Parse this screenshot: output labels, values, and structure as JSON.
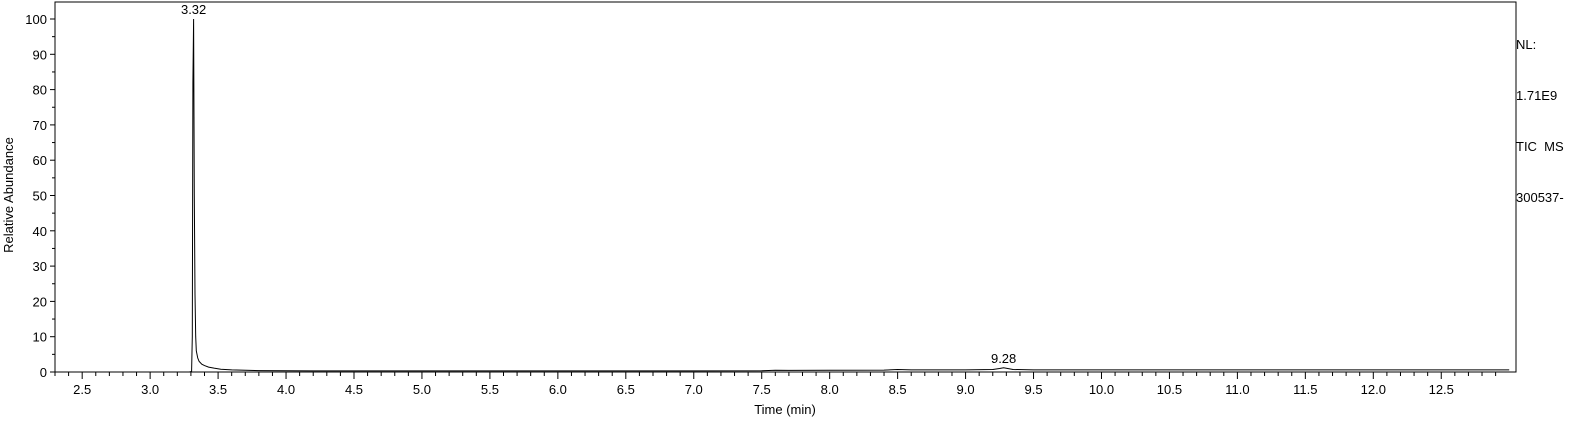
{
  "chart_data": {
    "type": "line",
    "xlabel": "Time (min)",
    "ylabel": "Relative Abundance",
    "xlim": [
      2.3,
      13.05
    ],
    "ylim": [
      0,
      100
    ],
    "x_ticks": [
      2.5,
      3.0,
      3.5,
      4.0,
      4.5,
      5.0,
      5.5,
      6.0,
      6.5,
      7.0,
      7.5,
      8.0,
      8.5,
      9.0,
      9.5,
      10.0,
      10.5,
      11.0,
      11.5,
      12.0,
      12.5
    ],
    "x_tick_labels": [
      "2.5",
      "3.0",
      "3.5",
      "4.0",
      "4.5",
      "5.0",
      "5.5",
      "6.0",
      "6.5",
      "7.0",
      "7.5",
      "8.0",
      "8.5",
      "9.0",
      "9.5",
      "10.0",
      "10.5",
      "11.0",
      "11.5",
      "12.0",
      "12.5"
    ],
    "y_ticks": [
      0,
      10,
      20,
      30,
      40,
      50,
      60,
      70,
      80,
      90,
      100
    ],
    "y_tick_labels": [
      "0",
      "10",
      "20",
      "30",
      "40",
      "50",
      "60",
      "70",
      "80",
      "90",
      "100"
    ],
    "series": [
      {
        "x": [
          3.29,
          3.305,
          3.31,
          3.315,
          3.32,
          3.325,
          3.33,
          3.335,
          3.34,
          3.35,
          3.36,
          3.38,
          3.4,
          3.43,
          3.47,
          3.52,
          3.6,
          3.8,
          4.2,
          5.0,
          6.0,
          7.0,
          7.5,
          7.6,
          7.7,
          8.0,
          8.4,
          8.5,
          8.6,
          9.0,
          9.2,
          9.25,
          9.28,
          9.31,
          9.35,
          9.5,
          10.0,
          11.0,
          12.0,
          13.0
        ],
        "y": [
          0,
          0.2,
          10,
          82,
          100,
          50,
          22,
          10,
          6,
          4,
          3,
          2.2,
          1.8,
          1.4,
          1.1,
          0.8,
          0.6,
          0.4,
          0.3,
          0.3,
          0.3,
          0.3,
          0.35,
          0.5,
          0.45,
          0.5,
          0.55,
          0.7,
          0.6,
          0.6,
          0.7,
          1.0,
          1.2,
          1.0,
          0.7,
          0.6,
          0.6,
          0.6,
          0.6,
          0.6
        ]
      }
    ],
    "annotations": [
      {
        "x": 3.32,
        "y": 100,
        "text": "3.32"
      },
      {
        "x": 9.28,
        "y": 1.2,
        "text": "9.28"
      }
    ]
  },
  "info": {
    "nl_label": "NL:",
    "nl_value": "1.71E9",
    "scan": "TIC  MS",
    "file": "300537-"
  }
}
